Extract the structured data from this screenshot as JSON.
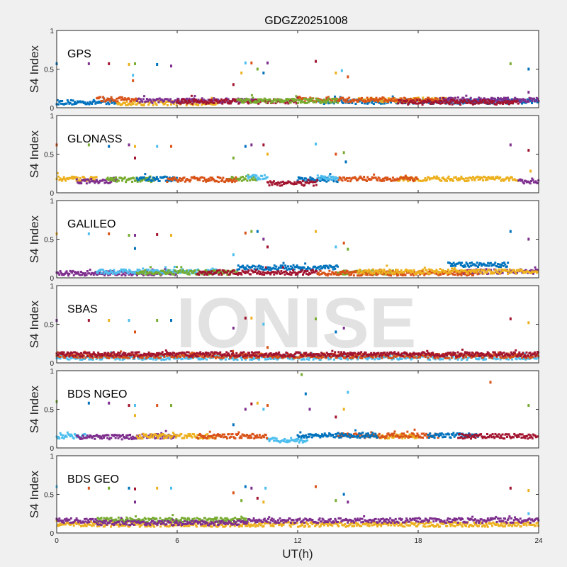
{
  "chart_data": {
    "type": "scatter",
    "title": "GDGZ20251008",
    "xlabel": "UT(h)",
    "ylabel": "S4 Index",
    "xlim": [
      0,
      24
    ],
    "ylim": [
      0,
      1
    ],
    "xticks": [
      "0",
      "6",
      "12",
      "18",
      "24"
    ],
    "yticks": [
      "0",
      "0.5",
      "1"
    ],
    "watermark": "IONISE",
    "colors": [
      "#0072BD",
      "#D95319",
      "#EDB120",
      "#7E2F8E",
      "#77AC30",
      "#4DBEEE",
      "#A2142F"
    ],
    "panels": [
      {
        "label": "GPS",
        "series": [
          {
            "color": "#0072BD",
            "segments": [
              [
                0,
                3,
                0.07
              ],
              [
                13,
                24,
                0.08
              ]
            ]
          },
          {
            "color": "#EDB120",
            "segments": [
              [
                3,
                8,
                0.06
              ],
              [
                15,
                20,
                0.1
              ]
            ]
          },
          {
            "color": "#7E2F8E",
            "segments": [
              [
                4,
                10,
                0.09
              ],
              [
                19,
                24,
                0.1
              ]
            ]
          },
          {
            "color": "#D95319",
            "segments": [
              [
                2,
                4,
                0.11
              ],
              [
                12,
                19,
                0.1
              ]
            ]
          },
          {
            "color": "#A2142F",
            "segments": [
              [
                6,
                12,
                0.08
              ],
              [
                17,
                23,
                0.07
              ]
            ]
          },
          {
            "color": "#77AC30",
            "segments": [
              [
                9,
                14,
                0.09
              ]
            ]
          }
        ],
        "outliers": [
          [
            0,
            0.57
          ],
          [
            1.6,
            0.57
          ],
          [
            2.6,
            0.57
          ],
          [
            3.6,
            0.56
          ],
          [
            3.8,
            0.42
          ],
          [
            3.8,
            0.35
          ],
          [
            3.9,
            0.57
          ],
          [
            5,
            0.56
          ],
          [
            5.7,
            0.54
          ],
          [
            8.8,
            0.3
          ],
          [
            9.2,
            0.45
          ],
          [
            9.4,
            0.58
          ],
          [
            9.7,
            0.58
          ],
          [
            10,
            0.5
          ],
          [
            10.3,
            0.45
          ],
          [
            10.5,
            0.58
          ],
          [
            12.9,
            0.6
          ],
          [
            13.9,
            0.45
          ],
          [
            14.2,
            0.48
          ],
          [
            14.5,
            0.4
          ],
          [
            22.6,
            0.57
          ],
          [
            23.5,
            0.5
          ],
          [
            23.5,
            0.2
          ]
        ]
      },
      {
        "label": "GLONASS",
        "series": [
          {
            "color": "#EDB120",
            "segments": [
              [
                0,
                2,
                0.18
              ],
              [
                17,
                23,
                0.18
              ]
            ]
          },
          {
            "color": "#7E2F8E",
            "segments": [
              [
                1,
                3,
                0.15
              ],
              [
                23,
                24,
                0.15
              ]
            ]
          },
          {
            "color": "#77AC30",
            "segments": [
              [
                2.5,
                5,
                0.17
              ],
              [
                8.5,
                10,
                0.18
              ]
            ]
          },
          {
            "color": "#0072BD",
            "segments": [
              [
                4,
                6,
                0.18
              ],
              [
                12,
                14,
                0.17
              ]
            ]
          },
          {
            "color": "#D95319",
            "segments": [
              [
                5.5,
                9,
                0.17
              ],
              [
                14,
                18,
                0.18
              ]
            ]
          },
          {
            "color": "#4DBEEE",
            "segments": [
              [
                9.5,
                10.5,
                0.2
              ],
              [
                13,
                14,
                0.2
              ]
            ]
          },
          {
            "color": "#A2142F",
            "segments": [
              [
                10.5,
                13,
                0.12
              ]
            ]
          }
        ],
        "outliers": [
          [
            0,
            0.62
          ],
          [
            1.6,
            0.62
          ],
          [
            2.6,
            0.6
          ],
          [
            3.6,
            0.62
          ],
          [
            3.9,
            0.45
          ],
          [
            3.9,
            0.6
          ],
          [
            5,
            0.6
          ],
          [
            5.7,
            0.6
          ],
          [
            8.8,
            0.45
          ],
          [
            9.4,
            0.6
          ],
          [
            9.7,
            0.62
          ],
          [
            10.3,
            0.62
          ],
          [
            10.5,
            0.5
          ],
          [
            12.9,
            0.63
          ],
          [
            13.9,
            0.5
          ],
          [
            14.3,
            0.52
          ],
          [
            14.4,
            0.4
          ],
          [
            22.6,
            0.62
          ],
          [
            23.5,
            0.55
          ],
          [
            23.6,
            0.28
          ]
        ]
      },
      {
        "label": "GALILEO",
        "series": [
          {
            "color": "#7E2F8E",
            "segments": [
              [
                0,
                6,
                0.06
              ],
              [
                20,
                24,
                0.08
              ]
            ]
          },
          {
            "color": "#4DBEEE",
            "segments": [
              [
                2,
                8,
                0.08
              ]
            ]
          },
          {
            "color": "#77AC30",
            "segments": [
              [
                4,
                9,
                0.07
              ],
              [
                14,
                17,
                0.07
              ]
            ]
          },
          {
            "color": "#0072BD",
            "segments": [
              [
                9,
                14,
                0.13
              ],
              [
                19.5,
                22.5,
                0.17
              ]
            ]
          },
          {
            "color": "#A2142F",
            "segments": [
              [
                7,
                13,
                0.07
              ]
            ]
          },
          {
            "color": "#D95319",
            "segments": [
              [
                13,
                21,
                0.06
              ]
            ]
          },
          {
            "color": "#EDB120",
            "segments": [
              [
                15,
                24,
                0.08
              ]
            ]
          }
        ],
        "outliers": [
          [
            0,
            0.57
          ],
          [
            1.6,
            0.57
          ],
          [
            2.6,
            0.57
          ],
          [
            3.6,
            0.55
          ],
          [
            3.9,
            0.38
          ],
          [
            3.9,
            0.55
          ],
          [
            5,
            0.56
          ],
          [
            5.7,
            0.55
          ],
          [
            8.8,
            0.3
          ],
          [
            9.4,
            0.58
          ],
          [
            9.7,
            0.6
          ],
          [
            10,
            0.6
          ],
          [
            10.3,
            0.5
          ],
          [
            10.5,
            0.4
          ],
          [
            12.9,
            0.6
          ],
          [
            13.9,
            0.4
          ],
          [
            14.3,
            0.45
          ],
          [
            14.5,
            0.37
          ],
          [
            22.6,
            0.6
          ],
          [
            23.5,
            0.5
          ]
        ]
      },
      {
        "label": "SBAS",
        "series": [
          {
            "color": "#4DBEEE",
            "segments": [
              [
                0,
                24,
                0.07
              ]
            ]
          },
          {
            "color": "#D95319",
            "segments": [
              [
                0,
                24,
                0.09
              ]
            ]
          },
          {
            "color": "#A2142F",
            "segments": [
              [
                0,
                24,
                0.11
              ]
            ]
          }
        ],
        "outliers": [
          [
            0,
            0.55
          ],
          [
            1.6,
            0.55
          ],
          [
            2.6,
            0.55
          ],
          [
            3.6,
            0.55
          ],
          [
            3.9,
            0.4
          ],
          [
            5,
            0.55
          ],
          [
            5.7,
            0.55
          ],
          [
            8.8,
            0.45
          ],
          [
            9.4,
            0.58
          ],
          [
            9.7,
            0.58
          ],
          [
            10.3,
            0.5
          ],
          [
            10.5,
            0.2
          ],
          [
            12.9,
            0.57
          ],
          [
            13.9,
            0.4
          ],
          [
            14.3,
            0.45
          ],
          [
            22.6,
            0.57
          ],
          [
            23.5,
            0.52
          ]
        ]
      },
      {
        "label": "BDS NGEO",
        "series": [
          {
            "color": "#4DBEEE",
            "segments": [
              [
                0,
                1.5,
                0.15
              ],
              [
                10.5,
                12.5,
                0.1
              ]
            ]
          },
          {
            "color": "#7E2F8E",
            "segments": [
              [
                1,
                4,
                0.14
              ],
              [
                4,
                6,
                0.15
              ]
            ]
          },
          {
            "color": "#EDB120",
            "segments": [
              [
                4,
                8,
                0.15
              ],
              [
                16,
                18,
                0.15
              ]
            ]
          },
          {
            "color": "#D95319",
            "segments": [
              [
                7,
                10.5,
                0.15
              ],
              [
                14,
                19,
                0.16
              ]
            ]
          },
          {
            "color": "#0072BD",
            "segments": [
              [
                12,
                16,
                0.16
              ],
              [
                18.5,
                21,
                0.16
              ]
            ]
          },
          {
            "color": "#A2142F",
            "segments": [
              [
                20,
                24,
                0.15
              ]
            ]
          }
        ],
        "outliers": [
          [
            0,
            0.6
          ],
          [
            1.6,
            0.58
          ],
          [
            2.6,
            0.58
          ],
          [
            3.6,
            0.55
          ],
          [
            3.9,
            0.42
          ],
          [
            3.9,
            0.55
          ],
          [
            5,
            0.55
          ],
          [
            5.7,
            0.55
          ],
          [
            8.8,
            0.3
          ],
          [
            9.4,
            0.5
          ],
          [
            9.7,
            0.57
          ],
          [
            10,
            0.58
          ],
          [
            10.3,
            0.5
          ],
          [
            10.5,
            0.55
          ],
          [
            12.2,
            0.95
          ],
          [
            12.4,
            0.7
          ],
          [
            12.6,
            0.5
          ],
          [
            13.9,
            0.4
          ],
          [
            14.3,
            0.5
          ],
          [
            14.5,
            0.72
          ],
          [
            21.6,
            0.85
          ],
          [
            23.5,
            0.55
          ]
        ]
      },
      {
        "label": "BDS GEO",
        "series": [
          {
            "color": "#EDB120",
            "segments": [
              [
                0,
                24,
                0.11
              ]
            ]
          },
          {
            "color": "#77AC30",
            "segments": [
              [
                2,
                9.5,
                0.17
              ]
            ]
          },
          {
            "color": "#7E2F8E",
            "segments": [
              [
                0,
                2,
                0.16
              ],
              [
                2,
                9.5,
                0.13
              ],
              [
                9.5,
                24,
                0.16
              ]
            ]
          }
        ],
        "outliers": [
          [
            0,
            0.6
          ],
          [
            1.6,
            0.58
          ],
          [
            2.6,
            0.58
          ],
          [
            3.6,
            0.58
          ],
          [
            3.9,
            0.4
          ],
          [
            3.9,
            0.57
          ],
          [
            5,
            0.58
          ],
          [
            5.7,
            0.58
          ],
          [
            8.8,
            0.52
          ],
          [
            9.2,
            0.42
          ],
          [
            9.4,
            0.6
          ],
          [
            9.7,
            0.58
          ],
          [
            10,
            0.45
          ],
          [
            10.3,
            0.4
          ],
          [
            10.4,
            0.58
          ],
          [
            12.9,
            0.6
          ],
          [
            13.9,
            0.42
          ],
          [
            14.3,
            0.5
          ],
          [
            14.5,
            0.4
          ],
          [
            22.6,
            0.58
          ],
          [
            23.5,
            0.55
          ],
          [
            23.5,
            0.25
          ]
        ]
      }
    ]
  }
}
